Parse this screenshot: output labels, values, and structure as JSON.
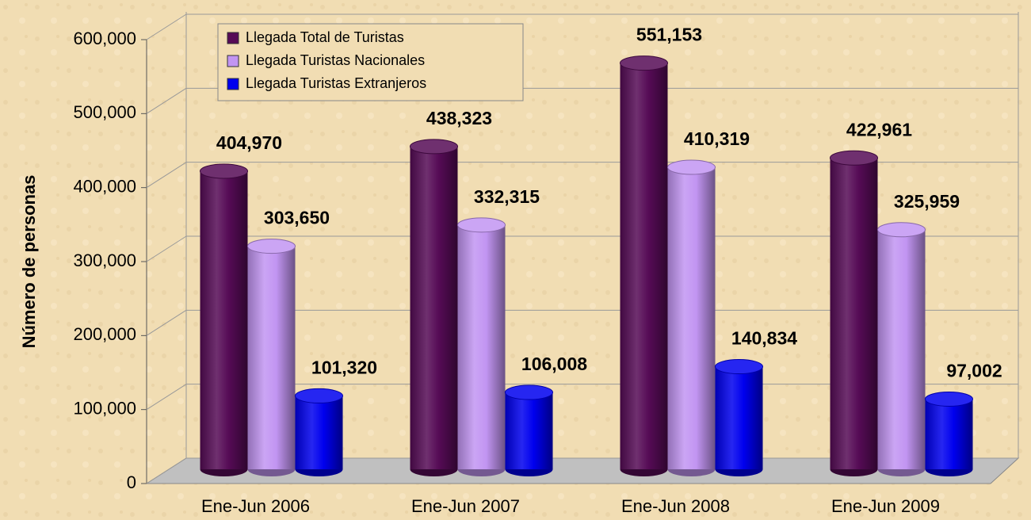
{
  "chart_data": {
    "type": "bar3d",
    "y_label": "Número de personas",
    "categories": [
      "Ene-Jun 2006",
      "Ene-Jun 2007",
      "Ene-Jun 2008",
      "Ene-Jun 2009"
    ],
    "series": [
      {
        "name": "Llegada Total de Turistas",
        "color": "#560b56",
        "values": [
          404970,
          438323,
          551153,
          422961
        ],
        "value_labels": [
          "404,970",
          "438,323",
          "551,153",
          "422,961"
        ]
      },
      {
        "name": "Llegada Turistas Nacionales",
        "color": "#c295f2",
        "values": [
          303650,
          332315,
          410319,
          325959
        ],
        "value_labels": [
          "303,650",
          "332,315",
          "410,319",
          "325,959"
        ]
      },
      {
        "name": "Llegada Turistas Extranjeros",
        "color": "#0000ee",
        "values": [
          101320,
          106008,
          140834,
          97002
        ],
        "value_labels": [
          "101,320",
          "106,008",
          "140,834",
          "97,002"
        ]
      }
    ],
    "ylim": [
      0,
      600000
    ],
    "yticks": [
      0,
      {
        "value": 100000,
        "label": "100,000"
      },
      {
        "value": 200000,
        "label": "200,000"
      },
      {
        "value": 300000,
        "label": "300,000"
      },
      {
        "value": 400000,
        "label": "400,000"
      },
      {
        "value": 500000,
        "label": "500,000"
      },
      {
        "value": 600000,
        "label": "600,000"
      }
    ],
    "grid": true
  }
}
